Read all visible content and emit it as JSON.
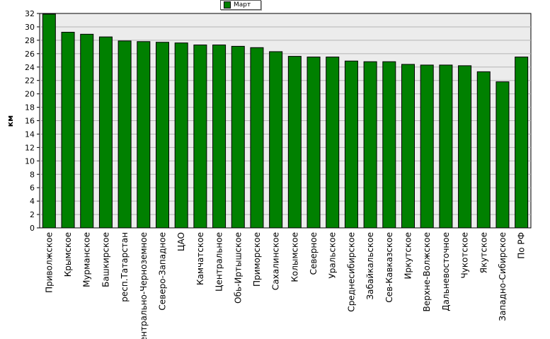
{
  "chart_data": {
    "type": "bar",
    "ylabel": "км",
    "xlabel": "",
    "ylim": [
      0,
      32
    ],
    "yticks": [
      0,
      2,
      4,
      6,
      8,
      10,
      12,
      14,
      16,
      18,
      20,
      22,
      24,
      26,
      28,
      30,
      32
    ],
    "grid": true,
    "legend_position": "top-center",
    "categories": [
      "Приволжское",
      "Крымское",
      "Мурманское",
      "Башкирское",
      "респ.Татарстан",
      "Центрально-Черноземное",
      "Северо-Западное",
      "ЦАО",
      "Камчатское",
      "Центральное",
      "Обь-Иртышское",
      "Приморское",
      "Сахалинское",
      "Колымское",
      "Северное",
      "Уральское",
      "Среднесибирское",
      "Забайкальское",
      "Сев-Кавказское",
      "Иркутское",
      "Верхне-Волжское",
      "Дальневосточное",
      "Чукотское",
      "Якутское",
      "Западно-Сибирское",
      "По РФ"
    ],
    "series": [
      {
        "name": "Март",
        "color": "#008000",
        "values": [
          31.9,
          29.2,
          28.9,
          28.5,
          27.9,
          27.8,
          27.7,
          27.6,
          27.3,
          27.3,
          27.1,
          26.9,
          26.3,
          25.6,
          25.5,
          25.5,
          24.9,
          24.8,
          24.8,
          24.4,
          24.3,
          24.3,
          24.2,
          23.3,
          21.8,
          25.5
        ]
      }
    ]
  }
}
